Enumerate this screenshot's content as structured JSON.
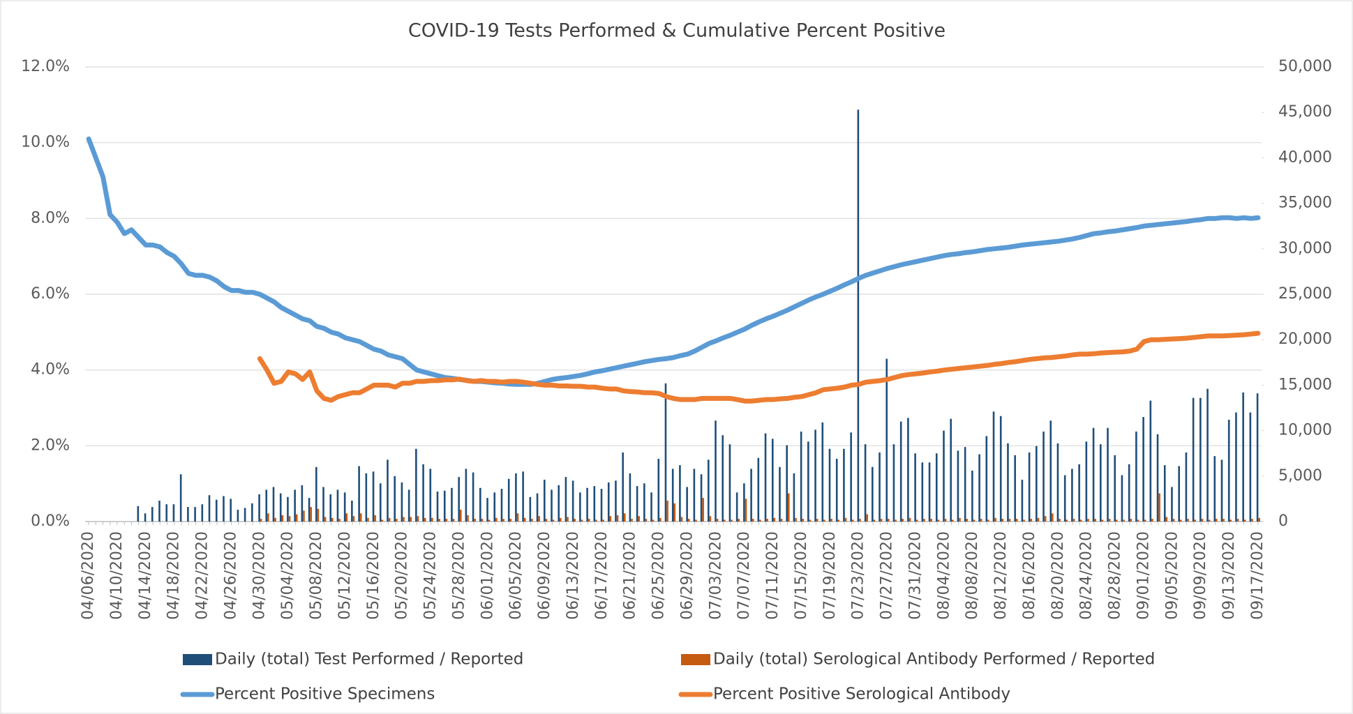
{
  "chart_data": {
    "type": "combo",
    "title": "COVID-19 Tests Performed & Cumulative Percent Positive",
    "grid": true,
    "legend": "bottom",
    "categories": [
      "04/06/2020",
      null,
      null,
      null,
      "04/10/2020",
      null,
      null,
      null,
      "04/14/2020",
      null,
      null,
      null,
      "04/18/2020",
      null,
      null,
      null,
      "04/22/2020",
      null,
      null,
      null,
      "04/26/2020",
      null,
      null,
      null,
      "04/30/2020",
      null,
      null,
      null,
      "05/04/2020",
      null,
      null,
      null,
      "05/08/2020",
      null,
      null,
      null,
      "05/12/2020",
      null,
      null,
      null,
      "05/16/2020",
      null,
      null,
      null,
      "05/20/2020",
      null,
      null,
      null,
      "05/24/2020",
      null,
      null,
      null,
      "05/28/2020",
      null,
      null,
      null,
      "06/01/2020",
      null,
      null,
      null,
      "06/05/2020",
      null,
      null,
      null,
      "06/09/2020",
      null,
      null,
      null,
      "06/13/2020",
      null,
      null,
      null,
      "06/17/2020",
      null,
      null,
      null,
      "06/21/2020",
      null,
      null,
      null,
      "06/25/2020",
      null,
      null,
      null,
      "06/29/2020",
      null,
      null,
      null,
      "07/03/2020",
      null,
      null,
      null,
      "07/07/2020",
      null,
      null,
      null,
      "07/11/2020",
      null,
      null,
      null,
      "07/15/2020",
      null,
      null,
      null,
      "07/19/2020",
      null,
      null,
      null,
      "07/23/2020",
      null,
      null,
      null,
      "07/27/2020",
      null,
      null,
      null,
      "07/31/2020",
      null,
      null,
      null,
      "08/04/2020",
      null,
      null,
      null,
      "08/08/2020",
      null,
      null,
      null,
      "08/12/2020",
      null,
      null,
      null,
      "08/16/2020",
      null,
      null,
      null,
      "08/20/2020",
      null,
      null,
      null,
      "08/24/2020",
      null,
      null,
      null,
      "08/28/2020",
      null,
      null,
      null,
      "09/01/2020",
      null,
      null,
      null,
      "09/05/2020",
      null,
      null,
      null,
      "09/09/2020",
      null,
      null,
      null,
      "09/13/2020",
      null,
      null,
      null,
      "09/17/2020"
    ],
    "ylim": [
      0,
      12
    ],
    "yticks": [
      {
        "value": 0,
        "label": "0.0%"
      },
      {
        "value": 2,
        "label": "2.0%"
      },
      {
        "value": 4,
        "label": "4.0%"
      },
      {
        "value": 6,
        "label": "6.0%"
      },
      {
        "value": 8,
        "label": "8.0%"
      },
      {
        "value": 10,
        "label": "10.0%"
      },
      {
        "value": 12,
        "label": "12.0%"
      }
    ],
    "y2lim": [
      0,
      50000
    ],
    "y2ticks": [
      0,
      {
        "value": 5000,
        "label": "5,000"
      },
      {
        "value": 10000,
        "label": "10,000"
      },
      {
        "value": 15000,
        "label": "15,000"
      },
      {
        "value": 20000,
        "label": "20,000"
      },
      {
        "value": 25000,
        "label": "25,000"
      },
      {
        "value": 30000,
        "label": "30,000"
      },
      {
        "value": 35000,
        "label": "35,000"
      },
      {
        "value": 40000,
        "label": "40,000"
      },
      {
        "value": 45000,
        "label": "45,000"
      },
      {
        "value": 50000,
        "label": "50,000"
      }
    ],
    "series": [
      {
        "name": "Daily (total) Test Performed / Reported",
        "type": "bar",
        "axis": "y2",
        "color": "#1f4e79",
        "values": [
          0,
          0,
          0,
          0,
          0,
          0,
          0,
          1700,
          900,
          1600,
          2300,
          1900,
          1900,
          5200,
          1600,
          1600,
          1900,
          2900,
          2400,
          2800,
          2500,
          1300,
          1500,
          2000,
          3000,
          3500,
          3800,
          3100,
          2700,
          3500,
          4000,
          2600,
          6000,
          3800,
          3000,
          3500,
          3200,
          2300,
          6100,
          5300,
          5500,
          4200,
          6800,
          5000,
          4300,
          3500,
          8000,
          6300,
          5800,
          3300,
          3400,
          3700,
          4900,
          5800,
          5400,
          3700,
          2600,
          3200,
          3600,
          4700,
          5300,
          5500,
          2700,
          3100,
          4600,
          3500,
          4000,
          4900,
          4500,
          3200,
          3700,
          3900,
          3600,
          4300,
          4500,
          7600,
          5300,
          3900,
          4200,
          3200,
          6900,
          15200,
          5800,
          6200,
          3800,
          5800,
          5200,
          6800,
          11100,
          9500,
          8500,
          3200,
          4200,
          5800,
          7000,
          9700,
          9100,
          6000,
          8400,
          5300,
          9900,
          8800,
          10100,
          10900,
          8000,
          6900,
          8000,
          9800,
          45300,
          8500,
          6000,
          7600,
          17900,
          8500,
          11000,
          11400,
          7500,
          6500,
          6500,
          7500,
          10000,
          11300,
          7800,
          8200,
          5600,
          7400,
          9400,
          12100,
          11600,
          8600,
          7300,
          4600,
          7600,
          8300,
          9900,
          11100,
          8600,
          5100,
          5800,
          6300,
          8800,
          10300,
          8500,
          10300,
          7300,
          5100,
          6300,
          9900,
          11500,
          13300,
          9600,
          6200,
          3800,
          6100,
          7600,
          13600,
          13600,
          14600,
          7200,
          6800,
          11200,
          12000,
          14200,
          12000,
          14100
        ]
      },
      {
        "name": "Daily (total) Serological Antibody Performed / Reported",
        "type": "bar",
        "axis": "y2",
        "color": "#c55a11",
        "values": [
          null,
          null,
          null,
          null,
          null,
          null,
          null,
          null,
          null,
          null,
          null,
          null,
          null,
          null,
          null,
          null,
          null,
          null,
          null,
          null,
          null,
          null,
          null,
          null,
          300,
          900,
          400,
          700,
          600,
          800,
          1200,
          1600,
          1400,
          500,
          400,
          300,
          900,
          600,
          900,
          400,
          700,
          200,
          400,
          300,
          500,
          500,
          600,
          400,
          400,
          300,
          300,
          300,
          1300,
          700,
          300,
          300,
          200,
          400,
          300,
          300,
          900,
          400,
          300,
          600,
          300,
          200,
          400,
          500,
          300,
          200,
          300,
          200,
          200,
          600,
          700,
          900,
          300,
          600,
          300,
          200,
          400,
          2300,
          2000,
          500,
          300,
          200,
          2600,
          600,
          300,
          200,
          200,
          300,
          2500,
          300,
          200,
          300,
          400,
          300,
          3100,
          400,
          300,
          200,
          300,
          200,
          300,
          200,
          400,
          200,
          300,
          800,
          200,
          300,
          300,
          200,
          300,
          400,
          200,
          300,
          300,
          200,
          300,
          200,
          400,
          300,
          200,
          300,
          200,
          400,
          300,
          300,
          300,
          200,
          300,
          400,
          600,
          900,
          300,
          200,
          300,
          200,
          300,
          300,
          200,
          300,
          200,
          200,
          300,
          200,
          200,
          300,
          3100,
          500,
          300,
          200,
          300,
          200,
          300,
          200,
          300,
          300,
          200,
          300,
          200,
          300,
          400
        ]
      },
      {
        "name": "Percent Positive Specimens",
        "type": "line",
        "axis": "y",
        "color": "#5b9bd5",
        "values": [
          10.1,
          9.6,
          9.1,
          8.1,
          7.9,
          7.6,
          7.7,
          7.5,
          7.3,
          7.3,
          7.25,
          7.1,
          7.0,
          6.8,
          6.55,
          6.5,
          6.5,
          6.45,
          6.35,
          6.2,
          6.1,
          6.1,
          6.05,
          6.05,
          6.0,
          5.9,
          5.8,
          5.65,
          5.55,
          5.45,
          5.35,
          5.3,
          5.15,
          5.1,
          5.0,
          4.95,
          4.85,
          4.8,
          4.75,
          4.65,
          4.55,
          4.5,
          4.4,
          4.35,
          4.3,
          4.15,
          4.0,
          3.95,
          3.9,
          3.85,
          3.8,
          3.78,
          3.75,
          3.73,
          3.7,
          3.7,
          3.68,
          3.66,
          3.65,
          3.63,
          3.62,
          3.62,
          3.62,
          3.65,
          3.7,
          3.75,
          3.78,
          3.8,
          3.83,
          3.86,
          3.9,
          3.95,
          3.98,
          4.02,
          4.06,
          4.1,
          4.14,
          4.18,
          4.22,
          4.25,
          4.28,
          4.3,
          4.33,
          4.38,
          4.42,
          4.5,
          4.6,
          4.7,
          4.77,
          4.85,
          4.92,
          5.0,
          5.08,
          5.18,
          5.27,
          5.35,
          5.42,
          5.5,
          5.58,
          5.67,
          5.76,
          5.85,
          5.93,
          6.0,
          6.08,
          6.16,
          6.25,
          6.33,
          6.42,
          6.5,
          6.56,
          6.62,
          6.68,
          6.73,
          6.78,
          6.82,
          6.86,
          6.9,
          6.94,
          6.98,
          7.02,
          7.05,
          7.07,
          7.1,
          7.12,
          7.15,
          7.18,
          7.2,
          7.22,
          7.24,
          7.27,
          7.3,
          7.32,
          7.34,
          7.36,
          7.38,
          7.4,
          7.43,
          7.46,
          7.5,
          7.55,
          7.6,
          7.62,
          7.65,
          7.67,
          7.7,
          7.73,
          7.76,
          7.8,
          7.82,
          7.84,
          7.86,
          7.88,
          7.9,
          7.92,
          7.95,
          7.97,
          8.0,
          8.0,
          8.02,
          8.02,
          8.0,
          8.02,
          8.0,
          8.02
        ]
      },
      {
        "name": "Percent Positive Serological Antibody",
        "type": "line",
        "axis": "y",
        "color": "#ed7d31",
        "values": [
          null,
          null,
          null,
          null,
          null,
          null,
          null,
          null,
          null,
          null,
          null,
          null,
          null,
          null,
          null,
          null,
          null,
          null,
          null,
          null,
          null,
          null,
          null,
          null,
          4.3,
          4.0,
          3.65,
          3.7,
          3.95,
          3.9,
          3.75,
          3.95,
          3.45,
          3.25,
          3.2,
          3.3,
          3.35,
          3.4,
          3.4,
          3.5,
          3.6,
          3.6,
          3.6,
          3.55,
          3.65,
          3.65,
          3.7,
          3.7,
          3.72,
          3.72,
          3.74,
          3.74,
          3.76,
          3.72,
          3.7,
          3.72,
          3.7,
          3.7,
          3.68,
          3.7,
          3.7,
          3.68,
          3.65,
          3.62,
          3.6,
          3.6,
          3.58,
          3.58,
          3.57,
          3.57,
          3.55,
          3.55,
          3.52,
          3.5,
          3.5,
          3.45,
          3.43,
          3.42,
          3.4,
          3.4,
          3.38,
          3.3,
          3.25,
          3.22,
          3.22,
          3.22,
          3.25,
          3.25,
          3.25,
          3.25,
          3.25,
          3.22,
          3.18,
          3.18,
          3.2,
          3.22,
          3.22,
          3.24,
          3.25,
          3.28,
          3.3,
          3.35,
          3.4,
          3.48,
          3.5,
          3.52,
          3.55,
          3.6,
          3.62,
          3.68,
          3.7,
          3.72,
          3.75,
          3.8,
          3.85,
          3.88,
          3.9,
          3.92,
          3.95,
          3.97,
          4.0,
          4.02,
          4.04,
          4.06,
          4.08,
          4.1,
          4.12,
          4.15,
          4.17,
          4.2,
          4.22,
          4.25,
          4.28,
          4.3,
          4.32,
          4.33,
          4.35,
          4.37,
          4.4,
          4.42,
          4.42,
          4.43,
          4.45,
          4.46,
          4.47,
          4.48,
          4.5,
          4.55,
          4.75,
          4.8,
          4.8,
          4.81,
          4.82,
          4.83,
          4.84,
          4.86,
          4.88,
          4.9,
          4.9,
          4.9,
          4.91,
          4.92,
          4.93,
          4.95,
          4.97
        ]
      }
    ]
  }
}
